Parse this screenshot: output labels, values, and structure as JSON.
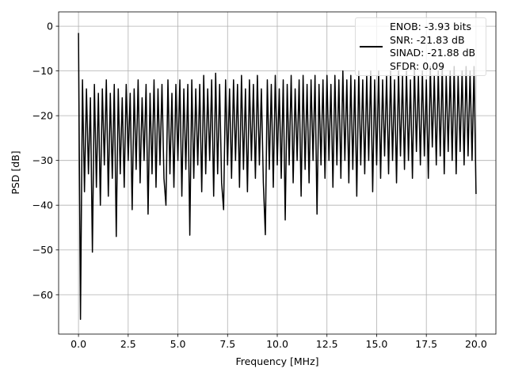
{
  "chart_data": {
    "type": "line",
    "xlabel": "Frequency [MHz]",
    "ylabel": "PSD [dB]",
    "xlim": [
      -1,
      21
    ],
    "ylim": [
      -68.8,
      3.2
    ],
    "xticks": [
      {
        "value": 0,
        "label": "0.0"
      },
      2.5,
      {
        "value": 5,
        "label": "5.0"
      },
      7.5,
      {
        "value": 10,
        "label": "10.0"
      },
      12.5,
      {
        "value": 15,
        "label": "15.0"
      },
      17.5,
      {
        "value": 20,
        "label": "20.0"
      }
    ],
    "yticks": [
      0,
      {
        "value": -10,
        "label": "−10"
      },
      {
        "value": -20,
        "label": "−20"
      },
      {
        "value": -30,
        "label": "−30"
      },
      {
        "value": -40,
        "label": "−40"
      },
      {
        "value": -50,
        "label": "−50"
      },
      {
        "value": -60,
        "label": "−60"
      }
    ],
    "grid": true,
    "legend": "upper right",
    "x": [
      0.0,
      0.1,
      0.2,
      0.3,
      0.4,
      0.5,
      0.6,
      0.7,
      0.8,
      0.9,
      1.0,
      1.1,
      1.2,
      1.3,
      1.4,
      1.5,
      1.6,
      1.7,
      1.8,
      1.9,
      2.0,
      2.1,
      2.2,
      2.3,
      2.4,
      2.5,
      2.6,
      2.7,
      2.8,
      2.9,
      3.0,
      3.1,
      3.2,
      3.3,
      3.4,
      3.5,
      3.6,
      3.7,
      3.8,
      3.9,
      4.0,
      4.1,
      4.2,
      4.3,
      4.4,
      4.5,
      4.6,
      4.7,
      4.8,
      4.9,
      5.0,
      5.1,
      5.2,
      5.3,
      5.4,
      5.5,
      5.6,
      5.7,
      5.8,
      5.9,
      6.0,
      6.1,
      6.2,
      6.3,
      6.4,
      6.5,
      6.6,
      6.7,
      6.8,
      6.9,
      7.0,
      7.1,
      7.2,
      7.3,
      7.4,
      7.5,
      7.6,
      7.7,
      7.8,
      7.9,
      8.0,
      8.1,
      8.2,
      8.3,
      8.4,
      8.5,
      8.6,
      8.7,
      8.8,
      8.9,
      9.0,
      9.1,
      9.2,
      9.3,
      9.4,
      9.5,
      9.6,
      9.7,
      9.8,
      9.9,
      10.0,
      10.1,
      10.2,
      10.3,
      10.4,
      10.5,
      10.6,
      10.7,
      10.8,
      10.9,
      11.0,
      11.1,
      11.2,
      11.3,
      11.4,
      11.5,
      11.6,
      11.7,
      11.8,
      11.9,
      12.0,
      12.1,
      12.2,
      12.3,
      12.4,
      12.5,
      12.6,
      12.7,
      12.8,
      12.9,
      13.0,
      13.1,
      13.2,
      13.3,
      13.4,
      13.5,
      13.6,
      13.7,
      13.8,
      13.9,
      14.0,
      14.1,
      14.2,
      14.3,
      14.4,
      14.5,
      14.6,
      14.7,
      14.8,
      14.9,
      15.0,
      15.1,
      15.2,
      15.3,
      15.4,
      15.5,
      15.6,
      15.7,
      15.8,
      15.9,
      16.0,
      16.1,
      16.2,
      16.3,
      16.4,
      16.5,
      16.6,
      16.7,
      16.8,
      16.9,
      17.0,
      17.1,
      17.2,
      17.3,
      17.4,
      17.5,
      17.6,
      17.7,
      17.8,
      17.9,
      18.0,
      18.1,
      18.2,
      18.3,
      18.4,
      18.5,
      18.6,
      18.7,
      18.8,
      18.9,
      19.0,
      19.1,
      19.2,
      19.3,
      19.4,
      19.5,
      19.6,
      19.7,
      19.8,
      19.9,
      20.0
    ],
    "series": [
      {
        "name": "ENOB: -3.93 bits\nSNR: -21.83 dB\nSINAD: -21.88 dB\nSFDR: 0.09",
        "color": "#000000",
        "values": [
          -1.5,
          -65.5,
          -12,
          -37,
          -14,
          -33,
          -16,
          -50.5,
          -13,
          -36,
          -15,
          -40,
          -14,
          -31,
          -12,
          -38,
          -15,
          -34,
          -13,
          -47,
          -14,
          -33,
          -16,
          -36,
          -13,
          -30,
          -15,
          -41,
          -14,
          -32,
          -12,
          -35,
          -16,
          -30,
          -13,
          -42,
          -15,
          -33,
          -12,
          -36,
          -14,
          -31,
          -13,
          -34,
          -40,
          -12,
          -33,
          -15,
          -36,
          -13,
          -30,
          -12,
          -38,
          -14,
          -32,
          -13,
          -46.7,
          -12,
          -34,
          -14,
          -31,
          -13,
          -37,
          -11,
          -33,
          -14,
          -30,
          -12,
          -38,
          -10.5,
          -33,
          -13,
          -35,
          -41,
          -12,
          -31,
          -14,
          -34,
          -12,
          -30,
          -13,
          -36,
          -11,
          -32,
          -14,
          -37,
          -12,
          -30,
          -13,
          -34,
          -11,
          -31,
          -14,
          -35,
          -46.6,
          -12,
          -32,
          -13,
          -36,
          -11,
          -31,
          -14,
          -34,
          -12,
          -43.3,
          -13,
          -31,
          -11,
          -35,
          -14,
          -30,
          -12,
          -38,
          -11,
          -32,
          -13,
          -35,
          -12,
          -30,
          -11,
          -42,
          -13,
          -31,
          -12,
          -34,
          -11,
          -30,
          -13,
          -36,
          -11,
          -31,
          -12,
          -34,
          -10,
          -30,
          -12,
          -35,
          -11,
          -32,
          -12,
          -38,
          -10,
          -31,
          -12,
          -33,
          -11,
          -30,
          -10,
          -37,
          -12,
          -31,
          -10,
          -34,
          -12,
          -29,
          -11,
          -33,
          -10,
          -30,
          -12,
          -35,
          -10,
          -29,
          -11,
          -32,
          -10,
          -30,
          -12,
          -34,
          -9,
          -28,
          -11,
          -31,
          -10,
          -29,
          -12,
          -34,
          -9,
          -27,
          -11,
          -31,
          -10,
          -29,
          -9,
          -33,
          -11,
          -28,
          -10,
          -30,
          -9,
          -33,
          -11,
          -28,
          -10,
          -31,
          -9,
          -29,
          -10,
          -30,
          -9,
          -37.5
        ]
      }
    ]
  }
}
